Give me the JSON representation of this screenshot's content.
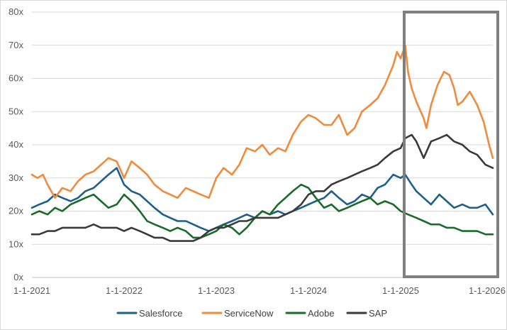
{
  "chart_data": {
    "type": "line",
    "title": "",
    "xlabel": "",
    "ylabel": "",
    "x_ticks": [
      "1-1-2021",
      "1-1-2022",
      "1-1-2023",
      "1-1-2024",
      "1-1-2025",
      "1-1-2026"
    ],
    "x_range": [
      2021.0,
      2026.0
    ],
    "y_ticks": [
      "0x",
      "10x",
      "20x",
      "30x",
      "40x",
      "50x",
      "60x",
      "70x",
      "80x"
    ],
    "ylim": [
      0,
      80
    ],
    "grid": "horizontal",
    "legend_position": "bottom",
    "highlight": {
      "x_start": 2025.0,
      "x_end": 2026.0,
      "y_start": 0,
      "y_end": 80,
      "color": "#7f7f7f"
    },
    "series": [
      {
        "name": "Salesforce",
        "color": "#1f5f8b",
        "points": [
          [
            2021.0,
            21
          ],
          [
            2021.08,
            22
          ],
          [
            2021.17,
            23
          ],
          [
            2021.25,
            25
          ],
          [
            2021.33,
            24
          ],
          [
            2021.42,
            23
          ],
          [
            2021.5,
            24
          ],
          [
            2021.58,
            26
          ],
          [
            2021.67,
            27
          ],
          [
            2021.75,
            29
          ],
          [
            2021.83,
            31
          ],
          [
            2021.92,
            33
          ],
          [
            2022.0,
            28
          ],
          [
            2022.08,
            26
          ],
          [
            2022.17,
            25
          ],
          [
            2022.25,
            23
          ],
          [
            2022.33,
            21
          ],
          [
            2022.42,
            19
          ],
          [
            2022.5,
            18
          ],
          [
            2022.58,
            17
          ],
          [
            2022.67,
            17
          ],
          [
            2022.75,
            16
          ],
          [
            2022.83,
            15
          ],
          [
            2022.92,
            14
          ],
          [
            2023.0,
            15
          ],
          [
            2023.08,
            16
          ],
          [
            2023.17,
            17
          ],
          [
            2023.25,
            18
          ],
          [
            2023.33,
            19
          ],
          [
            2023.42,
            18
          ],
          [
            2023.5,
            20
          ],
          [
            2023.58,
            19
          ],
          [
            2023.67,
            20
          ],
          [
            2023.75,
            19
          ],
          [
            2023.83,
            20
          ],
          [
            2023.92,
            21
          ],
          [
            2024.0,
            22
          ],
          [
            2024.08,
            23
          ],
          [
            2024.17,
            24
          ],
          [
            2024.25,
            26
          ],
          [
            2024.33,
            24
          ],
          [
            2024.42,
            22
          ],
          [
            2024.5,
            23
          ],
          [
            2024.58,
            25
          ],
          [
            2024.67,
            24
          ],
          [
            2024.75,
            27
          ],
          [
            2024.83,
            28
          ],
          [
            2024.92,
            31
          ],
          [
            2025.0,
            30
          ],
          [
            2025.05,
            31
          ],
          [
            2025.12,
            28
          ],
          [
            2025.17,
            26
          ],
          [
            2025.25,
            24
          ],
          [
            2025.33,
            22
          ],
          [
            2025.42,
            25
          ],
          [
            2025.5,
            23
          ],
          [
            2025.58,
            21
          ],
          [
            2025.67,
            22
          ],
          [
            2025.75,
            21
          ],
          [
            2025.83,
            21
          ],
          [
            2025.92,
            22
          ],
          [
            2026.0,
            19
          ]
        ]
      },
      {
        "name": "ServiceNow",
        "color": "#f08a3c",
        "points": [
          [
            2021.0,
            31
          ],
          [
            2021.06,
            30
          ],
          [
            2021.12,
            31
          ],
          [
            2021.17,
            28
          ],
          [
            2021.25,
            24
          ],
          [
            2021.33,
            27
          ],
          [
            2021.42,
            26
          ],
          [
            2021.5,
            29
          ],
          [
            2021.58,
            31
          ],
          [
            2021.67,
            32
          ],
          [
            2021.75,
            34
          ],
          [
            2021.83,
            36
          ],
          [
            2021.92,
            35
          ],
          [
            2022.0,
            30
          ],
          [
            2022.08,
            35
          ],
          [
            2022.17,
            33
          ],
          [
            2022.25,
            31
          ],
          [
            2022.33,
            28
          ],
          [
            2022.42,
            26
          ],
          [
            2022.5,
            25
          ],
          [
            2022.58,
            24
          ],
          [
            2022.67,
            27
          ],
          [
            2022.75,
            26
          ],
          [
            2022.83,
            25
          ],
          [
            2022.92,
            24
          ],
          [
            2023.0,
            30
          ],
          [
            2023.08,
            33
          ],
          [
            2023.17,
            31
          ],
          [
            2023.25,
            34
          ],
          [
            2023.33,
            39
          ],
          [
            2023.42,
            38
          ],
          [
            2023.5,
            40
          ],
          [
            2023.58,
            37
          ],
          [
            2023.67,
            39
          ],
          [
            2023.75,
            38
          ],
          [
            2023.83,
            43
          ],
          [
            2023.92,
            47
          ],
          [
            2024.0,
            49
          ],
          [
            2024.08,
            48
          ],
          [
            2024.17,
            46
          ],
          [
            2024.25,
            46
          ],
          [
            2024.33,
            49
          ],
          [
            2024.42,
            43
          ],
          [
            2024.5,
            45
          ],
          [
            2024.58,
            50
          ],
          [
            2024.67,
            52
          ],
          [
            2024.75,
            54
          ],
          [
            2024.83,
            58
          ],
          [
            2024.92,
            64
          ],
          [
            2024.96,
            68
          ],
          [
            2025.0,
            66
          ],
          [
            2025.05,
            70
          ],
          [
            2025.08,
            62
          ],
          [
            2025.12,
            57
          ],
          [
            2025.17,
            53
          ],
          [
            2025.25,
            48
          ],
          [
            2025.28,
            45
          ],
          [
            2025.33,
            52
          ],
          [
            2025.4,
            58
          ],
          [
            2025.47,
            62
          ],
          [
            2025.53,
            61
          ],
          [
            2025.58,
            57
          ],
          [
            2025.62,
            52
          ],
          [
            2025.67,
            53
          ],
          [
            2025.75,
            56
          ],
          [
            2025.83,
            52
          ],
          [
            2025.9,
            47
          ],
          [
            2025.96,
            40
          ],
          [
            2026.0,
            36
          ]
        ]
      },
      {
        "name": "Adobe",
        "color": "#1a6b2a",
        "points": [
          [
            2021.0,
            19
          ],
          [
            2021.08,
            20
          ],
          [
            2021.17,
            19
          ],
          [
            2021.25,
            21
          ],
          [
            2021.33,
            20
          ],
          [
            2021.42,
            22
          ],
          [
            2021.5,
            23
          ],
          [
            2021.58,
            24
          ],
          [
            2021.67,
            25
          ],
          [
            2021.75,
            23
          ],
          [
            2021.83,
            21
          ],
          [
            2021.92,
            22
          ],
          [
            2022.0,
            25
          ],
          [
            2022.08,
            23
          ],
          [
            2022.17,
            20
          ],
          [
            2022.25,
            17
          ],
          [
            2022.33,
            16
          ],
          [
            2022.42,
            15
          ],
          [
            2022.5,
            14
          ],
          [
            2022.58,
            15
          ],
          [
            2022.67,
            14
          ],
          [
            2022.75,
            12
          ],
          [
            2022.83,
            12
          ],
          [
            2022.92,
            13
          ],
          [
            2023.0,
            14
          ],
          [
            2023.08,
            16
          ],
          [
            2023.17,
            15
          ],
          [
            2023.25,
            13
          ],
          [
            2023.33,
            15
          ],
          [
            2023.42,
            18
          ],
          [
            2023.5,
            20
          ],
          [
            2023.58,
            19
          ],
          [
            2023.67,
            22
          ],
          [
            2023.75,
            24
          ],
          [
            2023.83,
            26
          ],
          [
            2023.92,
            28
          ],
          [
            2024.0,
            27
          ],
          [
            2024.08,
            24
          ],
          [
            2024.17,
            21
          ],
          [
            2024.25,
            22
          ],
          [
            2024.33,
            20
          ],
          [
            2024.42,
            21
          ],
          [
            2024.5,
            22
          ],
          [
            2024.58,
            23
          ],
          [
            2024.67,
            24
          ],
          [
            2024.75,
            22
          ],
          [
            2024.83,
            23
          ],
          [
            2024.92,
            22
          ],
          [
            2025.0,
            20
          ],
          [
            2025.08,
            19
          ],
          [
            2025.17,
            18
          ],
          [
            2025.25,
            17
          ],
          [
            2025.33,
            16
          ],
          [
            2025.42,
            16
          ],
          [
            2025.5,
            15
          ],
          [
            2025.58,
            15
          ],
          [
            2025.67,
            14
          ],
          [
            2025.75,
            14
          ],
          [
            2025.83,
            14
          ],
          [
            2025.92,
            13
          ],
          [
            2026.0,
            13
          ]
        ]
      },
      {
        "name": "SAP",
        "color": "#3a3a3a",
        "points": [
          [
            2021.0,
            13
          ],
          [
            2021.08,
            13
          ],
          [
            2021.17,
            14
          ],
          [
            2021.25,
            14
          ],
          [
            2021.33,
            15
          ],
          [
            2021.42,
            15
          ],
          [
            2021.5,
            15
          ],
          [
            2021.58,
            15
          ],
          [
            2021.67,
            16
          ],
          [
            2021.75,
            15
          ],
          [
            2021.83,
            15
          ],
          [
            2021.92,
            15
          ],
          [
            2022.0,
            14
          ],
          [
            2022.08,
            15
          ],
          [
            2022.17,
            14
          ],
          [
            2022.25,
            13
          ],
          [
            2022.33,
            12
          ],
          [
            2022.42,
            12
          ],
          [
            2022.5,
            11
          ],
          [
            2022.58,
            11
          ],
          [
            2022.67,
            11
          ],
          [
            2022.75,
            11
          ],
          [
            2022.83,
            12
          ],
          [
            2022.92,
            14
          ],
          [
            2023.0,
            15
          ],
          [
            2023.08,
            15
          ],
          [
            2023.17,
            16
          ],
          [
            2023.25,
            17
          ],
          [
            2023.33,
            17
          ],
          [
            2023.42,
            18
          ],
          [
            2023.5,
            18
          ],
          [
            2023.58,
            18
          ],
          [
            2023.67,
            18
          ],
          [
            2023.75,
            19
          ],
          [
            2023.83,
            20
          ],
          [
            2023.92,
            22
          ],
          [
            2024.0,
            25
          ],
          [
            2024.08,
            26
          ],
          [
            2024.17,
            26
          ],
          [
            2024.25,
            28
          ],
          [
            2024.33,
            29
          ],
          [
            2024.42,
            30
          ],
          [
            2024.5,
            31
          ],
          [
            2024.58,
            32
          ],
          [
            2024.67,
            33
          ],
          [
            2024.75,
            34
          ],
          [
            2024.83,
            36
          ],
          [
            2024.92,
            38
          ],
          [
            2025.0,
            39
          ],
          [
            2025.05,
            42
          ],
          [
            2025.12,
            43
          ],
          [
            2025.17,
            41
          ],
          [
            2025.25,
            36
          ],
          [
            2025.33,
            41
          ],
          [
            2025.42,
            42
          ],
          [
            2025.5,
            43
          ],
          [
            2025.58,
            41
          ],
          [
            2025.67,
            40
          ],
          [
            2025.75,
            38
          ],
          [
            2025.83,
            37
          ],
          [
            2025.92,
            34
          ],
          [
            2026.0,
            33
          ]
        ]
      }
    ]
  }
}
